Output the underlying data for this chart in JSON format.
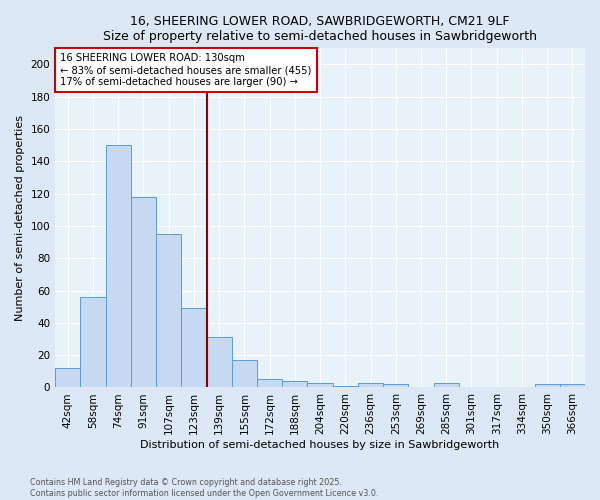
{
  "title1": "16, SHEERING LOWER ROAD, SAWBRIDGEWORTH, CM21 9LF",
  "title2": "Size of property relative to semi-detached houses in Sawbridgeworth",
  "xlabel": "Distribution of semi-detached houses by size in Sawbridgeworth",
  "ylabel": "Number of semi-detached properties",
  "categories": [
    "42sqm",
    "58sqm",
    "74sqm",
    "91sqm",
    "107sqm",
    "123sqm",
    "139sqm",
    "155sqm",
    "172sqm",
    "188sqm",
    "204sqm",
    "220sqm",
    "236sqm",
    "253sqm",
    "269sqm",
    "285sqm",
    "301sqm",
    "317sqm",
    "334sqm",
    "350sqm",
    "366sqm"
  ],
  "values": [
    12,
    56,
    150,
    118,
    95,
    49,
    31,
    17,
    5,
    4,
    3,
    1,
    3,
    2,
    0,
    3,
    0,
    0,
    0,
    2,
    2
  ],
  "bar_color": "#c6d9f0",
  "bar_edge_color": "#5b9bd5",
  "highlight_color": "#8b0000",
  "annotation_title": "16 SHEERING LOWER ROAD: 130sqm",
  "annotation_line1": "← 83% of semi-detached houses are smaller (455)",
  "annotation_line2": "17% of semi-detached houses are larger (90) →",
  "annotation_box_color": "#ffffff",
  "annotation_box_edge_color": "#cc0000",
  "ylim": [
    0,
    210
  ],
  "yticks": [
    0,
    20,
    40,
    60,
    80,
    100,
    120,
    140,
    160,
    180,
    200
  ],
  "footer": "Contains HM Land Registry data © Crown copyright and database right 2025.\nContains public sector information licensed under the Open Government Licence v3.0.",
  "bg_color": "#dce8f5",
  "plot_bg_color": "#e8f2fb"
}
